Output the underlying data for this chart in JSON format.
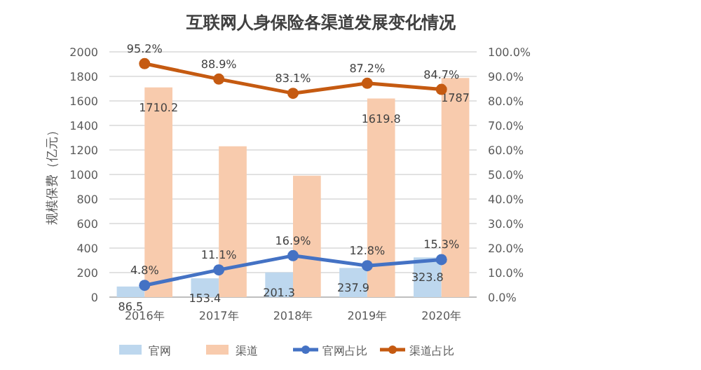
{
  "chart_data": {
    "type": "bar",
    "title": "互联网人身保险各渠道发展变化情况",
    "ylabel": "规模保费（亿元）",
    "categories": [
      "2016年",
      "2017年",
      "2018年",
      "2019年",
      "2020年"
    ],
    "series": [
      {
        "name": "官网",
        "color": "#bdd7ee",
        "values": [
          86.5,
          153.4,
          201.3,
          237.9,
          323.8
        ],
        "value_labels": [
          "86.5",
          "153.4",
          "201.3",
          "237.9",
          "323.8"
        ]
      },
      {
        "name": "渠道",
        "color": "#f8cbad",
        "values": [
          1710.2,
          1230,
          990,
          1619.8,
          1787
        ],
        "value_labels": [
          "1710.2",
          null,
          null,
          "1619.8",
          "1787"
        ]
      },
      {
        "name": "官网占比",
        "type": "line",
        "axis": "y2",
        "color": "#4472c4",
        "values": [
          4.8,
          11.1,
          16.9,
          12.8,
          15.3
        ],
        "value_labels": [
          "4.8%",
          "11.1%",
          "16.9%",
          "12.8%",
          "15.3%"
        ]
      },
      {
        "name": "渠道占比",
        "type": "line",
        "axis": "y2",
        "color": "#c55a11",
        "values": [
          95.2,
          88.9,
          83.1,
          87.2,
          84.7
        ],
        "value_labels": [
          "95.2%",
          "88.9%",
          "83.1%",
          "87.2%",
          "84.7%"
        ]
      }
    ],
    "ylim": [
      0,
      2000
    ],
    "yticks": [
      0,
      200,
      400,
      600,
      800,
      1000,
      1200,
      1400,
      1600,
      1800,
      2000
    ],
    "y2lim": [
      0,
      100
    ],
    "y2ticks": [
      {
        "value": 0,
        "label": "0.0%"
      },
      {
        "value": 10,
        "label": "10.0%"
      },
      {
        "value": 20,
        "label": "20.0%"
      },
      {
        "value": 30,
        "label": "30.0%"
      },
      {
        "value": 40,
        "label": "40.0%"
      },
      {
        "value": 50,
        "label": "50.0%"
      },
      {
        "value": 60,
        "label": "60.0%"
      },
      {
        "value": 70,
        "label": "70.0%"
      },
      {
        "value": 80,
        "label": "80.0%"
      },
      {
        "value": 90,
        "label": "90.0%"
      },
      {
        "value": 100,
        "label": "100.0%"
      }
    ],
    "grid": "y",
    "legend": "bottom",
    "marker": "circle",
    "line_style": "solid"
  }
}
